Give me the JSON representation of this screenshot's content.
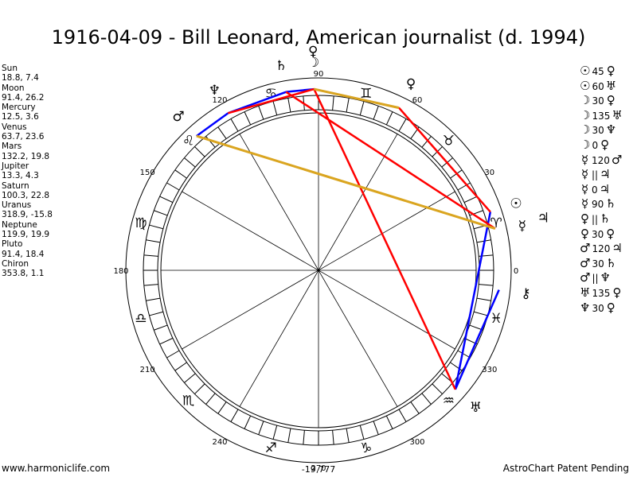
{
  "title": "1916-04-09 - Bill Leonard, American journalist (d. 1994)",
  "planet_positions": [
    {
      "name": "Sun",
      "value": "18.8, 7.4"
    },
    {
      "name": "Moon",
      "value": "91.4, 26.2"
    },
    {
      "name": "Mercury",
      "value": "12.5, 3.6"
    },
    {
      "name": "Venus",
      "value": "63.7, 23.6"
    },
    {
      "name": "Mars",
      "value": "132.2, 19.8"
    },
    {
      "name": "Jupiter",
      "value": "13.3, 4.3"
    },
    {
      "name": "Saturn",
      "value": "100.3, 22.8"
    },
    {
      "name": "Uranus",
      "value": "318.9, -15.8"
    },
    {
      "name": "Neptune",
      "value": "119.9, 19.9"
    },
    {
      "name": "Pluto",
      "value": "91.4, 18.4"
    },
    {
      "name": "Chiron",
      "value": "353.8, 1.1"
    }
  ],
  "aspect_list": [
    {
      "p1": "☉",
      "aspect": "45",
      "p2": "♀"
    },
    {
      "p1": "☉",
      "aspect": "60",
      "p2": "♅"
    },
    {
      "p1": "☽",
      "aspect": "30",
      "p2": "♀"
    },
    {
      "p1": "☽",
      "aspect": "135",
      "p2": "♅"
    },
    {
      "p1": "☽",
      "aspect": "30",
      "p2": "♆"
    },
    {
      "p1": "☽",
      "aspect": "0",
      "p2": "♀"
    },
    {
      "p1": "☿",
      "aspect": "120",
      "p2": "♂"
    },
    {
      "p1": "☿",
      "aspect": "||",
      "p2": "♃"
    },
    {
      "p1": "☿",
      "aspect": "0",
      "p2": "♃"
    },
    {
      "p1": "☿",
      "aspect": "90",
      "p2": "♄"
    },
    {
      "p1": "♀",
      "aspect": "||",
      "p2": "♄"
    },
    {
      "p1": "♀",
      "aspect": "30",
      "p2": "♀"
    },
    {
      "p1": "♂",
      "aspect": "120",
      "p2": "♃"
    },
    {
      "p1": "♂",
      "aspect": "30",
      "p2": "♄"
    },
    {
      "p1": "♂",
      "aspect": "||",
      "p2": "♆"
    },
    {
      "p1": "♅",
      "aspect": "135",
      "p2": "♀"
    },
    {
      "p1": "♆",
      "aspect": "30",
      "p2": "♀"
    }
  ],
  "wheel": {
    "degree_labels": [
      "0",
      "30",
      "60",
      "90",
      "120",
      "150",
      "180",
      "210",
      "240",
      "270",
      "300",
      "330"
    ],
    "center_value": "-19,777",
    "zodiac_signs": [
      {
        "glyph": "♈",
        "lon": 15
      },
      {
        "glyph": "♉",
        "lon": 45
      },
      {
        "glyph": "♊",
        "lon": 75
      },
      {
        "glyph": "♋",
        "lon": 105
      },
      {
        "glyph": "♌",
        "lon": 135
      },
      {
        "glyph": "♍",
        "lon": 165
      },
      {
        "glyph": "♎",
        "lon": 195
      },
      {
        "glyph": "♏",
        "lon": 225
      },
      {
        "glyph": "♐",
        "lon": 255
      },
      {
        "glyph": "♑",
        "lon": 285
      },
      {
        "glyph": "♒",
        "lon": 315
      },
      {
        "glyph": "♓",
        "lon": 345
      }
    ],
    "planets": [
      {
        "name": "Sun",
        "glyph": "☉",
        "lon": 18.8
      },
      {
        "name": "Moon",
        "glyph": "☽",
        "lon": 91.4
      },
      {
        "name": "Mercury",
        "glyph": "☿",
        "lon": 12.5
      },
      {
        "name": "Venus",
        "glyph": "♀",
        "lon": 63.7
      },
      {
        "name": "Mars",
        "glyph": "♂",
        "lon": 132.2
      },
      {
        "name": "Jupiter",
        "glyph": "♃",
        "lon": 13.3
      },
      {
        "name": "Saturn",
        "glyph": "♄",
        "lon": 100.3
      },
      {
        "name": "Uranus",
        "glyph": "♅",
        "lon": 318.9
      },
      {
        "name": "Neptune",
        "glyph": "♆",
        "lon": 119.9
      },
      {
        "name": "Pluto",
        "glyph": "♀",
        "lon": 91.4
      },
      {
        "name": "Chiron",
        "glyph": "⚷",
        "lon": 353.8
      }
    ],
    "aspect_lines": [
      {
        "from": 91.4,
        "to": 100.3,
        "color": "#0000ff"
      },
      {
        "from": 91.4,
        "to": 63.7,
        "color": "#0000ff"
      },
      {
        "from": 100.3,
        "to": 119.9,
        "color": "#0000ff"
      },
      {
        "from": 119.9,
        "to": 132.2,
        "color": "#0000ff"
      },
      {
        "from": 18.8,
        "to": 318.9,
        "color": "#0000ff"
      },
      {
        "from": 353.8,
        "to": 318.9,
        "color": "#0000ff"
      },
      {
        "from": 91.4,
        "to": 318.9,
        "color": "#ff0000"
      },
      {
        "from": 100.3,
        "to": 13.3,
        "color": "#ff0000"
      },
      {
        "from": 63.7,
        "to": 18.8,
        "color": "#ff0000"
      },
      {
        "from": 119.9,
        "to": 91.4,
        "color": "#ff0000"
      },
      {
        "from": 132.2,
        "to": 13.3,
        "color": "#daa520"
      },
      {
        "from": 91.4,
        "to": 63.7,
        "color": "#daa520"
      }
    ]
  },
  "footer": {
    "left": "www.harmoniclife.com",
    "right": "AstroChart Patent Pending"
  }
}
